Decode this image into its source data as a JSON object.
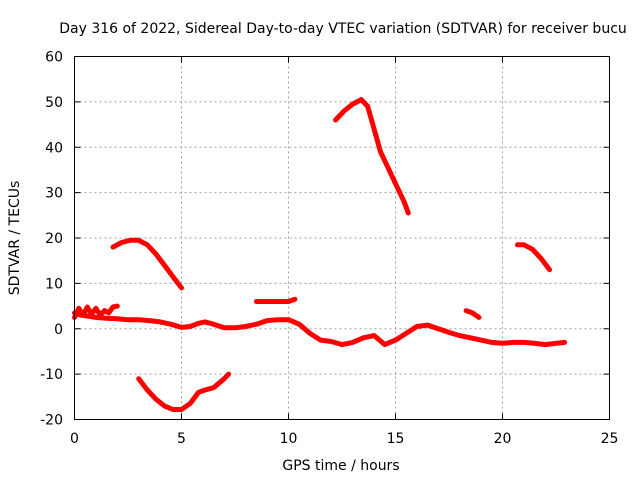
{
  "chart_data": {
    "type": "line",
    "title": "Day 316 of 2022, Sidereal Day-to-day VTEC variation (SDTVAR) for receiver bucu",
    "xlabel": "GPS time / hours",
    "ylabel": "SDTVAR / TECUs",
    "xlim": [
      0,
      25
    ],
    "ylim": [
      -20,
      60
    ],
    "xticks": [
      0,
      5,
      10,
      15,
      20,
      25
    ],
    "yticks": [
      -20,
      -10,
      0,
      10,
      20,
      30,
      40,
      50,
      60
    ],
    "xtick_labels": [
      "0",
      "5",
      "10",
      "15",
      "20",
      "25"
    ],
    "ytick_labels": [
      "-20",
      "-10",
      "0",
      "10",
      "20",
      "30",
      "40",
      "50",
      "60"
    ],
    "grid": true,
    "color": "#ff0000",
    "series": [
      {
        "name": "main-trace",
        "x": [
          0.0,
          0.3,
          0.6,
          1.0,
          1.5,
          2.0,
          2.5,
          3.0,
          3.5,
          4.0,
          4.5,
          5.0,
          5.4,
          5.8,
          6.1,
          6.5,
          7.0,
          7.5,
          8.0,
          8.5,
          9.0,
          9.5,
          10.0,
          10.5,
          11.0,
          11.5,
          12.0,
          12.5,
          13.0,
          13.5,
          14.0,
          14.5,
          15.0,
          15.5,
          16.0,
          16.5,
          17.0,
          17.5,
          18.0,
          18.5,
          19.0,
          19.5,
          20.0,
          20.5,
          21.0,
          21.5,
          22.0,
          22.5,
          22.9
        ],
        "y": [
          3.5,
          3.0,
          2.8,
          2.5,
          2.3,
          2.2,
          2.0,
          2.0,
          1.8,
          1.5,
          1.0,
          0.3,
          0.5,
          1.2,
          1.5,
          1.0,
          0.2,
          0.2,
          0.5,
          1.0,
          1.8,
          2.0,
          2.0,
          1.0,
          -1.0,
          -2.5,
          -2.8,
          -3.5,
          -3.0,
          -2.0,
          -1.5,
          -3.5,
          -2.5,
          -1.0,
          0.5,
          0.8,
          0.0,
          -0.8,
          -1.5,
          -2.0,
          -2.5,
          -3.0,
          -3.2,
          -3.0,
          -3.0,
          -3.2,
          -3.5,
          -3.2,
          -3.0
        ]
      },
      {
        "name": "early-spikes",
        "x": [
          0.0,
          0.2,
          0.4,
          0.6,
          0.8,
          1.0,
          1.2,
          1.4,
          1.6,
          1.8,
          2.0
        ],
        "y": [
          2.5,
          4.5,
          3.0,
          4.8,
          3.2,
          4.5,
          3.0,
          4.0,
          3.5,
          4.8,
          5.0
        ]
      },
      {
        "name": "arc-a",
        "x": [
          1.8,
          2.2,
          2.6,
          3.0,
          3.4,
          3.8,
          4.2,
          4.6,
          5.0
        ],
        "y": [
          18.0,
          19.0,
          19.5,
          19.5,
          18.5,
          16.5,
          14.0,
          11.5,
          9.0
        ]
      },
      {
        "name": "arc-b",
        "x": [
          3.0,
          3.4,
          3.8,
          4.2,
          4.6,
          5.0,
          5.4,
          5.8,
          6.1,
          6.5,
          7.0,
          7.2
        ],
        "y": [
          -11.0,
          -13.5,
          -15.5,
          -17.0,
          -17.8,
          -17.8,
          -16.5,
          -14.0,
          -13.5,
          -13.0,
          -11.0,
          -10.0
        ]
      },
      {
        "name": "segment-c",
        "x": [
          8.5,
          9.0,
          9.5,
          10.0,
          10.3
        ],
        "y": [
          6.0,
          6.0,
          6.0,
          6.0,
          6.5
        ]
      },
      {
        "name": "arc-d",
        "x": [
          12.2,
          12.6,
          13.0,
          13.4,
          13.7,
          14.0,
          14.3,
          14.7,
          15.1,
          15.4,
          15.6
        ],
        "y": [
          46.0,
          48.0,
          49.5,
          50.5,
          49.0,
          44.0,
          39.0,
          35.0,
          31.0,
          28.0,
          25.5
        ]
      },
      {
        "name": "segment-e",
        "x": [
          18.3,
          18.6,
          18.9
        ],
        "y": [
          4.0,
          3.5,
          2.5
        ]
      },
      {
        "name": "arc-f",
        "x": [
          20.7,
          21.0,
          21.4,
          21.8,
          22.2
        ],
        "y": [
          18.5,
          18.5,
          17.5,
          15.5,
          13.0
        ]
      }
    ]
  }
}
